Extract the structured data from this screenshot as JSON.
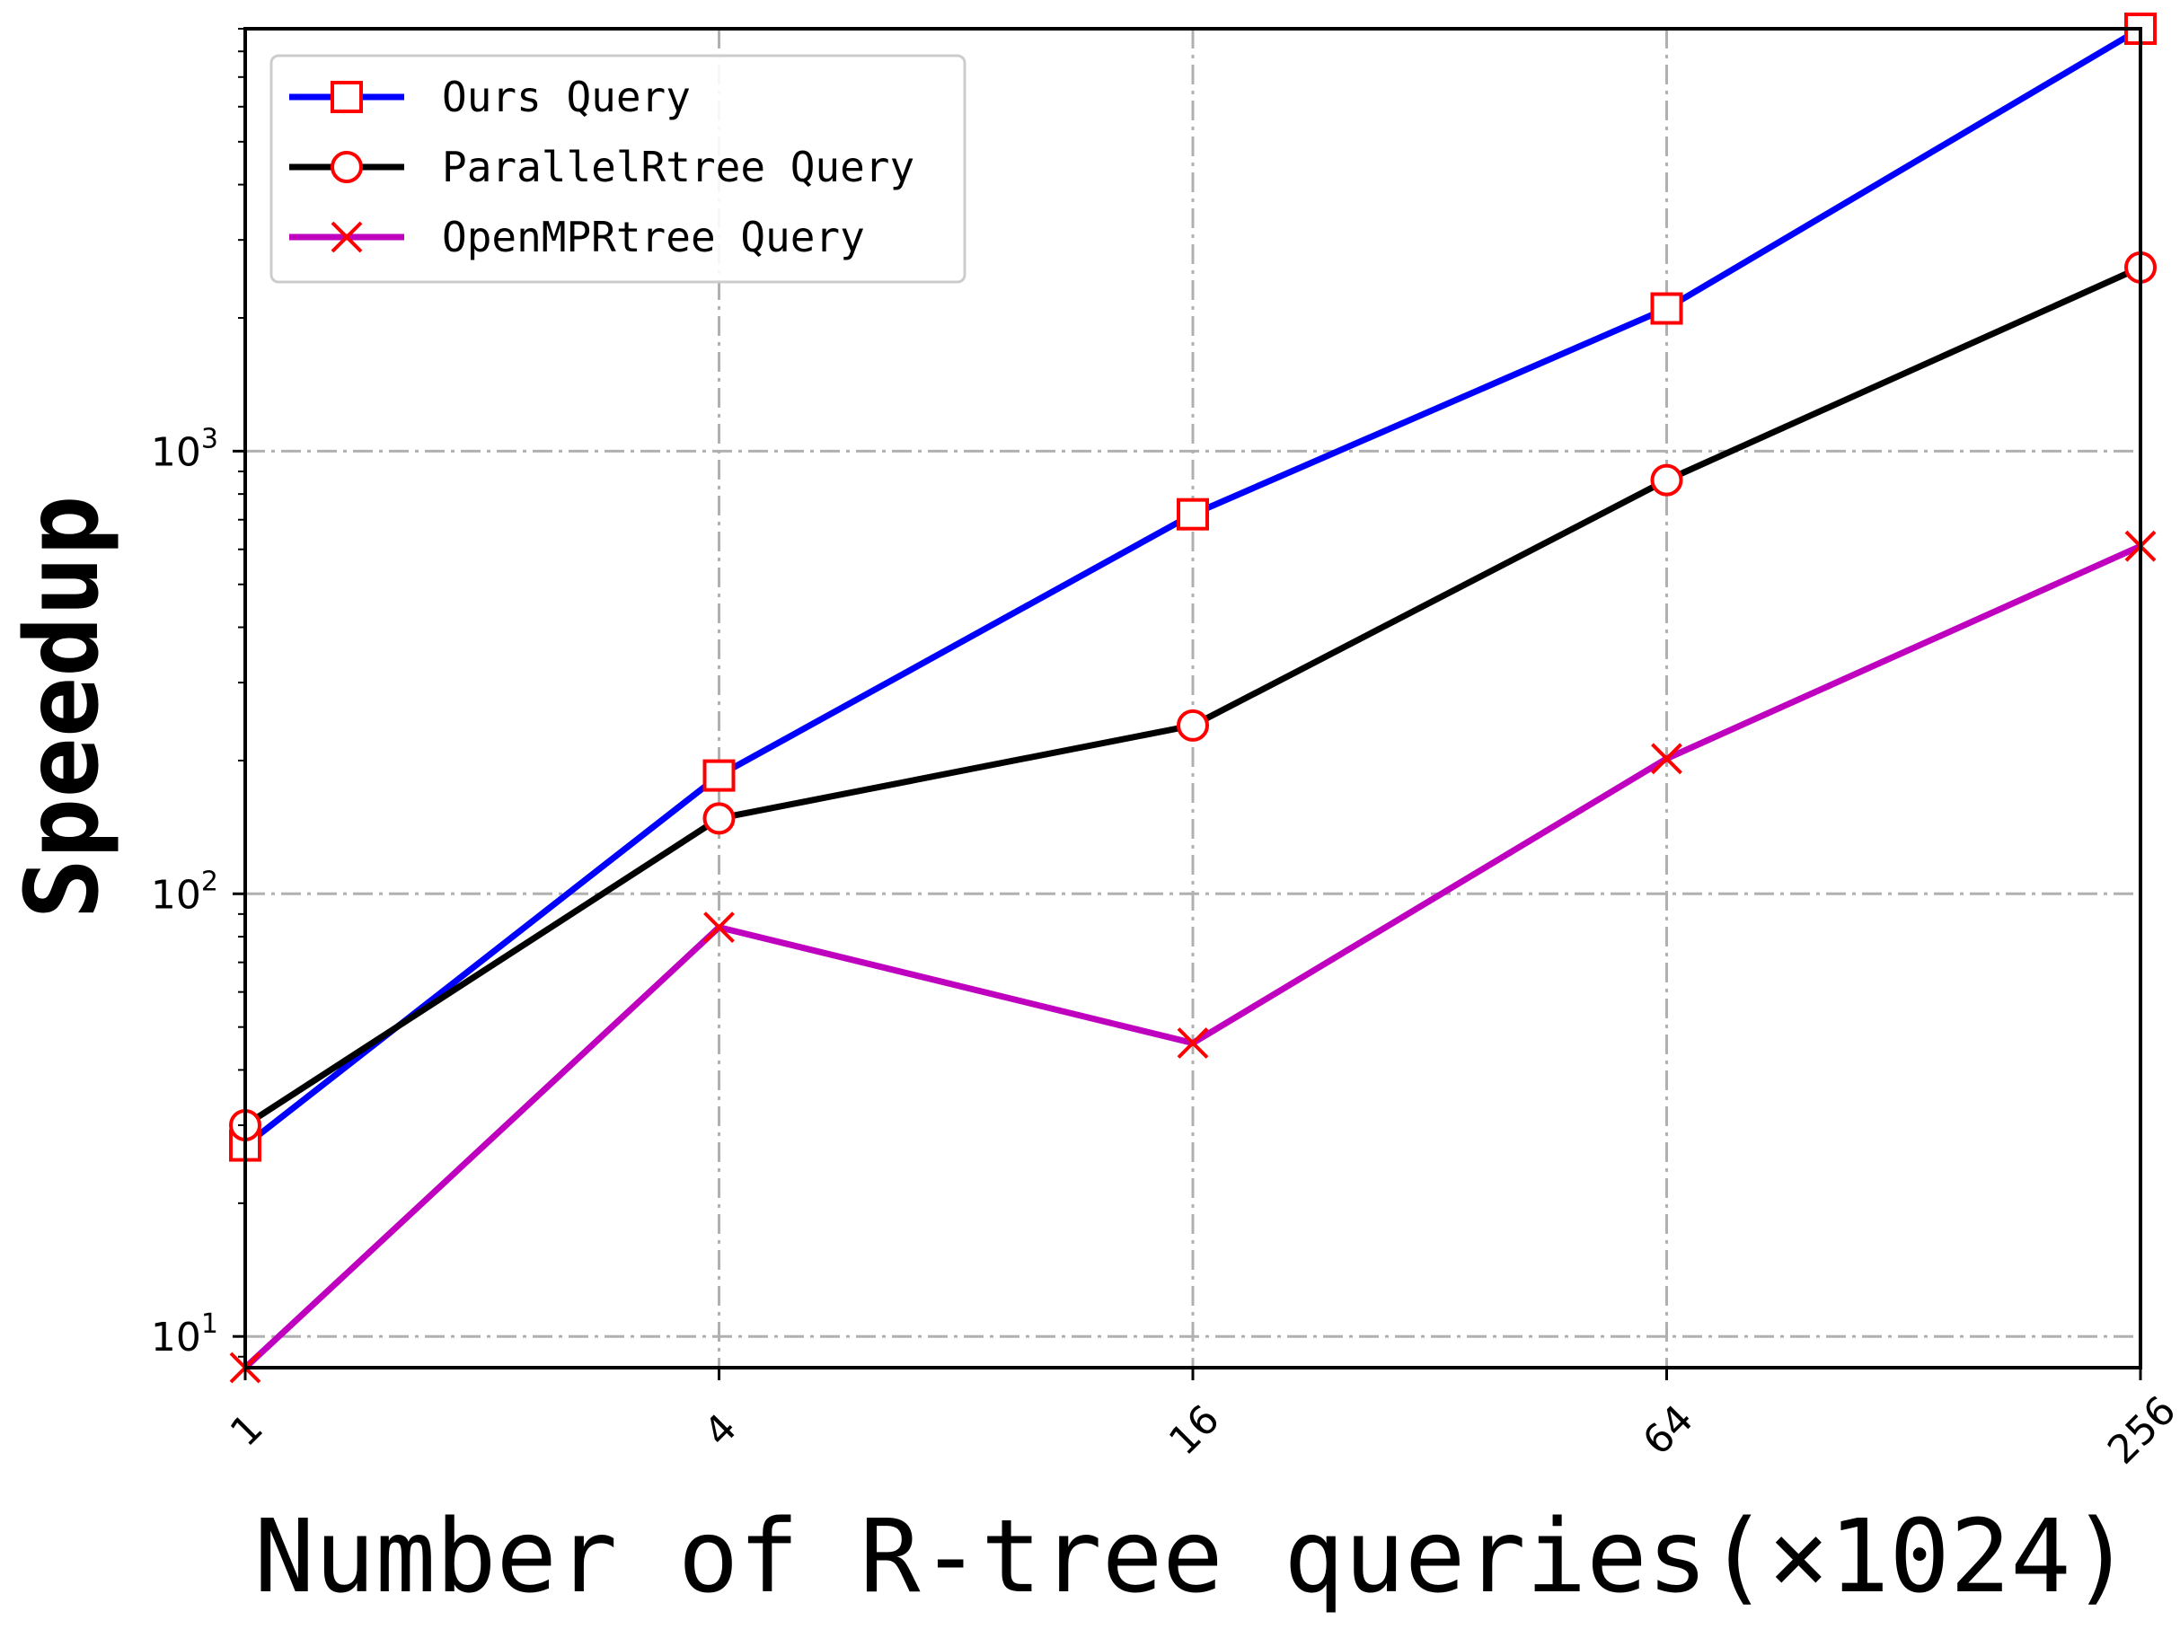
{
  "chart_data": {
    "type": "line",
    "xlabel": "Number of R-tree queries(×1024)",
    "ylabel": "Speedup",
    "x_scale": "log2",
    "y_scale": "log10",
    "x": [
      1,
      4,
      16,
      64,
      256
    ],
    "x_tick_labels": [
      "1",
      "4",
      "16",
      "64",
      "256"
    ],
    "y_tick_labels": [
      {
        "base": "10",
        "exp": "1"
      },
      {
        "base": "10",
        "exp": "2"
      },
      {
        "base": "10",
        "exp": "3"
      }
    ],
    "ylim": [
      8.5,
      9000
    ],
    "grid": true,
    "legend_position": "top-left",
    "series": [
      {
        "name": "Ours Query",
        "values": [
          27,
          185,
          720,
          2100,
          9000
        ],
        "color": "#0000ff",
        "marker": "square"
      },
      {
        "name": "ParallelRtree Query",
        "values": [
          30,
          148,
          240,
          860,
          2600
        ],
        "color": "#000000",
        "marker": "circle"
      },
      {
        "name": "OpenMPRtree Query",
        "values": [
          8.5,
          84,
          46,
          202,
          610
        ],
        "color": "#bf00bf",
        "marker": "x"
      }
    ],
    "marker_color": "#ff0000"
  }
}
